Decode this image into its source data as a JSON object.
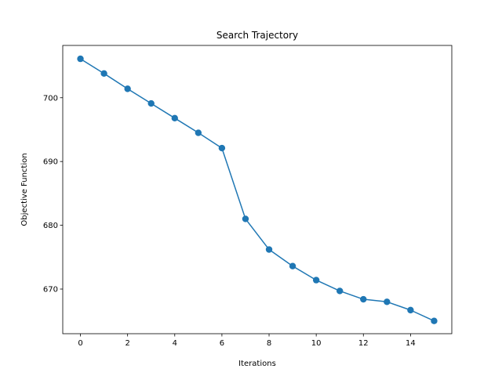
{
  "chart_data": {
    "type": "line",
    "title": "Search Trajectory",
    "xlabel": "Iterations",
    "ylabel": "Objective Function",
    "xlim": [
      -0.75,
      15.75
    ],
    "ylim": [
      663.0,
      708.2
    ],
    "x_ticks": [
      0,
      2,
      4,
      6,
      8,
      10,
      12,
      14
    ],
    "y_ticks": [
      670,
      680,
      690,
      700
    ],
    "grid": false,
    "series": [
      {
        "color": "#1f77b4",
        "marker": "circle",
        "x": [
          0,
          1,
          2,
          3,
          4,
          5,
          6,
          7,
          8,
          9,
          10,
          11,
          12,
          13,
          14,
          15
        ],
        "y": [
          706.1,
          703.8,
          701.4,
          699.1,
          696.8,
          694.5,
          692.1,
          681.0,
          676.2,
          673.6,
          671.4,
          669.7,
          668.4,
          668.0,
          666.7,
          665.0
        ]
      }
    ]
  }
}
